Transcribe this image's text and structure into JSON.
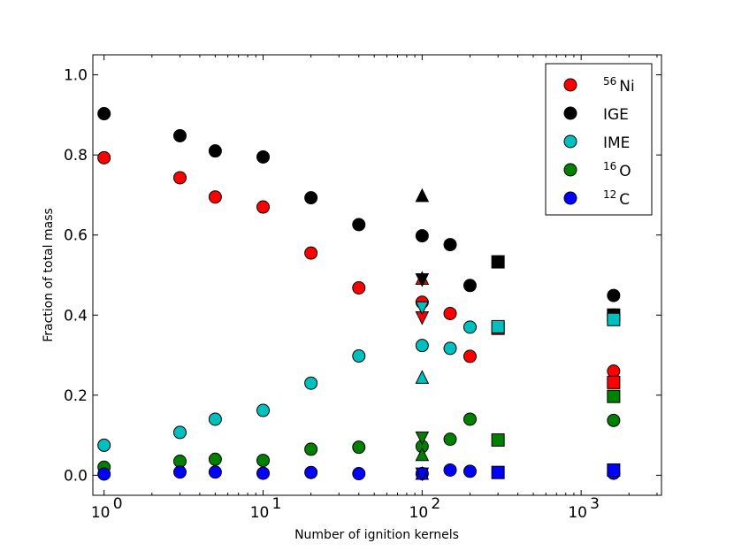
{
  "chart_data": {
    "type": "scatter",
    "xscale": "log",
    "xlim": [
      0.85,
      3200
    ],
    "ylim": [
      -0.05,
      1.05
    ],
    "xlabel": "Number of ignition kernels",
    "ylabel": "Fraction of total mass",
    "x_ticks": [
      {
        "value": 1,
        "base": "10",
        "exp": "0"
      },
      {
        "value": 10,
        "base": "10",
        "exp": "1"
      },
      {
        "value": 100,
        "base": "10",
        "exp": "2"
      },
      {
        "value": 1000,
        "base": "10",
        "exp": "3"
      }
    ],
    "y_ticks": [
      {
        "value": 0.0,
        "label": "0.0"
      },
      {
        "value": 0.2,
        "label": "0.2"
      },
      {
        "value": 0.4,
        "label": "0.4"
      },
      {
        "value": 0.6,
        "label": "0.6"
      },
      {
        "value": 0.8,
        "label": "0.8"
      },
      {
        "value": 1.0,
        "label": "1.0"
      }
    ],
    "legend": {
      "position": "top-right",
      "entries": [
        {
          "sup": "56",
          "name": "Ni",
          "color": "#ff0000"
        },
        {
          "sup": "",
          "name": "IGE",
          "color": "#000000"
        },
        {
          "sup": "",
          "name": "IME",
          "color": "#00bfbf"
        },
        {
          "sup": "16",
          "name": "O",
          "color": "#008000"
        },
        {
          "sup": "12",
          "name": "C",
          "color": "#0000ff"
        }
      ]
    },
    "series": [
      {
        "name": "56Ni",
        "color": "#ff0000",
        "marker": "circle",
        "points": [
          [
            1,
            0.793
          ],
          [
            3,
            0.743
          ],
          [
            5,
            0.695
          ],
          [
            10,
            0.67
          ],
          [
            20,
            0.555
          ],
          [
            40,
            0.468
          ],
          [
            100,
            0.432
          ],
          [
            150,
            0.404
          ],
          [
            200,
            0.297
          ],
          [
            1600,
            0.26
          ]
        ]
      },
      {
        "name": "IGE",
        "color": "#000000",
        "marker": "circle",
        "points": [
          [
            1,
            0.903
          ],
          [
            3,
            0.848
          ],
          [
            5,
            0.81
          ],
          [
            10,
            0.795
          ],
          [
            20,
            0.693
          ],
          [
            40,
            0.626
          ],
          [
            100,
            0.598
          ],
          [
            150,
            0.576
          ],
          [
            200,
            0.474
          ],
          [
            1600,
            0.449
          ]
        ]
      },
      {
        "name": "IME",
        "color": "#00bfbf",
        "marker": "circle",
        "points": [
          [
            1,
            0.075
          ],
          [
            3,
            0.107
          ],
          [
            5,
            0.14
          ],
          [
            10,
            0.162
          ],
          [
            20,
            0.23
          ],
          [
            40,
            0.298
          ],
          [
            100,
            0.324
          ],
          [
            150,
            0.317
          ],
          [
            200,
            0.37
          ],
          [
            1600,
            0.4
          ]
        ]
      },
      {
        "name": "16O",
        "color": "#008000",
        "marker": "circle",
        "points": [
          [
            1,
            0.02
          ],
          [
            3,
            0.035
          ],
          [
            5,
            0.04
          ],
          [
            10,
            0.037
          ],
          [
            20,
            0.065
          ],
          [
            40,
            0.07
          ],
          [
            100,
            0.072
          ],
          [
            150,
            0.09
          ],
          [
            200,
            0.14
          ],
          [
            1600,
            0.137
          ]
        ]
      },
      {
        "name": "12C",
        "color": "#0000ff",
        "marker": "circle",
        "points": [
          [
            1,
            0.003
          ],
          [
            3,
            0.008
          ],
          [
            5,
            0.008
          ],
          [
            10,
            0.005
          ],
          [
            20,
            0.007
          ],
          [
            40,
            0.004
          ],
          [
            100,
            0.004
          ],
          [
            150,
            0.013
          ],
          [
            200,
            0.01
          ],
          [
            1600,
            0.005
          ]
        ]
      },
      {
        "name": "56Ni",
        "color": "#ff0000",
        "marker": "triangle-up",
        "points": [
          [
            100,
            0.49
          ]
        ]
      },
      {
        "name": "IGE",
        "color": "#000000",
        "marker": "triangle-up",
        "points": [
          [
            100,
            0.697
          ]
        ]
      },
      {
        "name": "IME",
        "color": "#00bfbf",
        "marker": "triangle-up",
        "points": [
          [
            100,
            0.243
          ]
        ]
      },
      {
        "name": "16O",
        "color": "#008000",
        "marker": "triangle-up",
        "points": [
          [
            100,
            0.05
          ]
        ]
      },
      {
        "name": "12C",
        "color": "#0000ff",
        "marker": "triangle-up",
        "points": [
          [
            100,
            0.003
          ]
        ]
      },
      {
        "name": "56Ni",
        "color": "#ff0000",
        "marker": "triangle-down",
        "points": [
          [
            100,
            0.395
          ]
        ]
      },
      {
        "name": "IGE",
        "color": "#000000",
        "marker": "triangle-down",
        "points": [
          [
            100,
            0.49
          ]
        ]
      },
      {
        "name": "IME",
        "color": "#00bfbf",
        "marker": "triangle-down",
        "points": [
          [
            100,
            0.42
          ]
        ]
      },
      {
        "name": "16O",
        "color": "#008000",
        "marker": "triangle-down",
        "points": [
          [
            100,
            0.095
          ]
        ]
      },
      {
        "name": "12C",
        "color": "#0000ff",
        "marker": "triangle-down",
        "points": [
          [
            100,
            0.005
          ]
        ]
      },
      {
        "name": "IGE",
        "color": "#000000",
        "marker": "square",
        "points": [
          [
            300,
            0.533
          ],
          [
            1600,
            0.4
          ]
        ]
      },
      {
        "name": "56Ni",
        "color": "#ff0000",
        "marker": "square",
        "points": [
          [
            300,
            0.367
          ],
          [
            1600,
            0.232
          ]
        ]
      },
      {
        "name": "IME",
        "color": "#00bfbf",
        "marker": "square",
        "points": [
          [
            300,
            0.371
          ],
          [
            1600,
            0.389
          ]
        ]
      },
      {
        "name": "16O",
        "color": "#008000",
        "marker": "square",
        "points": [
          [
            300,
            0.088
          ],
          [
            1600,
            0.197
          ]
        ]
      },
      {
        "name": "12C",
        "color": "#0000ff",
        "marker": "square",
        "points": [
          [
            300,
            0.007
          ],
          [
            1600,
            0.013
          ]
        ]
      }
    ]
  }
}
